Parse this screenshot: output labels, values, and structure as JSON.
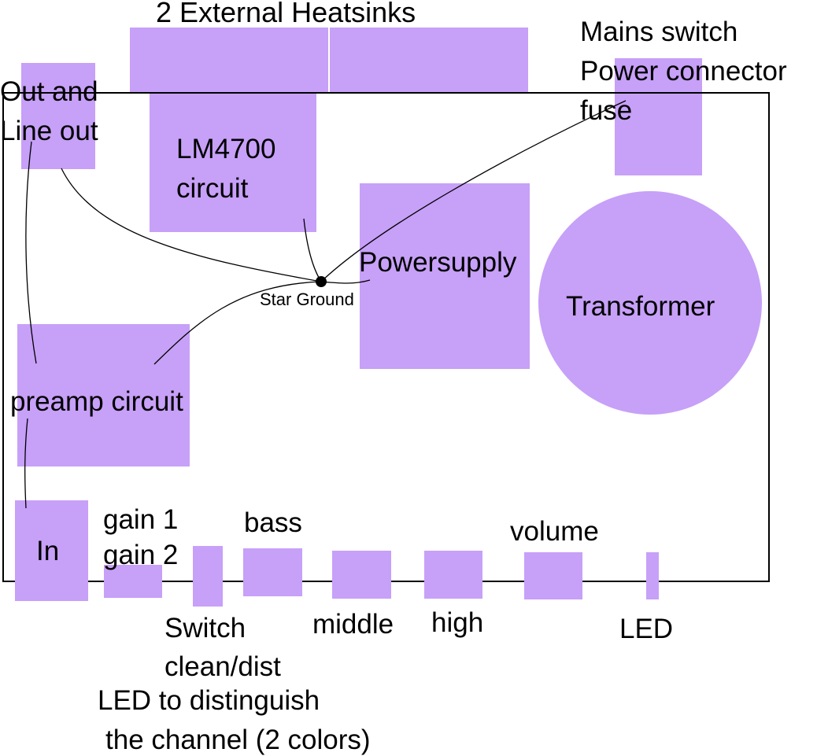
{
  "colors": {
    "block_fill": "#c7a0f8",
    "line": "#000000",
    "background": "#ffffff"
  },
  "labels": {
    "heatsinks": "2 External Heatsinks",
    "out_line1": "Out and",
    "out_line2": "Line out",
    "lm4700_line1": "LM4700",
    "lm4700_line2": "circuit",
    "power_line1": "Mains switch",
    "power_line2": "Power connector",
    "power_line3": "fuse",
    "powersupply": "Powersupply",
    "star_ground": "Star Ground",
    "transformer": "Transformer",
    "preamp": "preamp circuit",
    "in": "In",
    "gain1": "gain 1",
    "gain2": "gain 2",
    "bass": "bass",
    "volume": "volume",
    "switch_line1": "Switch",
    "switch_line2": "clean/dist",
    "middle": "middle",
    "high": "high",
    "led": "LED",
    "led_note_line1": "LED to distinguish",
    "led_note_line2": "the channel (2 colors)"
  }
}
